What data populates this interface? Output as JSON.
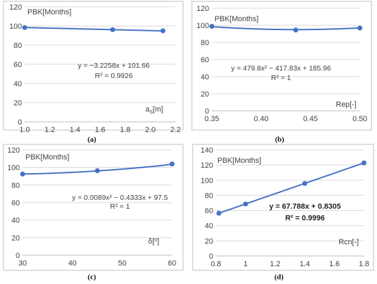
{
  "colors": {
    "series": "#4472c4",
    "grid": "#d9d9d9",
    "frame": "#bfbfbf",
    "text": "#404040"
  },
  "chart_data": [
    {
      "type": "line",
      "caption": "(a)",
      "ylabel": "PBK[Months]",
      "xlabel": "a_s[m]",
      "xlabel_main": "a",
      "xlabel_sub": "S",
      "xlabel_rest": "[m]",
      "xlim": [
        1.0,
        2.2
      ],
      "ylim": [
        0,
        120
      ],
      "xticks": [
        1.0,
        1.2,
        1.4,
        1.6,
        1.8,
        2.0,
        2.2
      ],
      "xtick_labels": [
        "1.0",
        "1.2",
        "1.4",
        "1.6",
        "1.8",
        "2.0",
        "2.2"
      ],
      "yticks": [
        0,
        20,
        40,
        60,
        80,
        100,
        120
      ],
      "ytick_labels": [
        "0",
        "20",
        "40",
        "60",
        "80",
        "100",
        "120"
      ],
      "series": [
        {
          "x": [
            1.0,
            1.7,
            2.1
          ],
          "y": [
            98.4,
            96.2,
            95.0
          ]
        }
      ],
      "trendline": {
        "type": "linear",
        "a": -3.2258,
        "b": 101.66
      },
      "equation": "y = −3.2258x + 101.66",
      "r2": "R² = 0.9926",
      "grid": true
    },
    {
      "type": "line",
      "caption": "(b)",
      "ylabel": "PBK[Months]",
      "xlabel": "Rep[-]",
      "xlim": [
        0.35,
        0.5
      ],
      "ylim": [
        0,
        120
      ],
      "xticks": [
        0.35,
        0.4,
        0.45,
        0.5
      ],
      "xtick_labels": [
        "0.35",
        "0.40",
        "0.45",
        "0.50"
      ],
      "yticks": [
        0,
        20,
        40,
        60,
        80,
        100,
        120
      ],
      "ytick_labels": [
        "0",
        "20",
        "40",
        "60",
        "80",
        "100",
        "120"
      ],
      "series": [
        {
          "x": [
            0.35,
            0.435,
            0.5
          ],
          "y": [
            98.8,
            94.5,
            96.8
          ]
        }
      ],
      "trendline": {
        "type": "poly2",
        "a": 479.8,
        "b": -417.83,
        "c": 185.96
      },
      "equation": "y = 479.8x² − 417.83x + 185.96",
      "r2": "R² = 1",
      "grid": true
    },
    {
      "type": "line",
      "caption": "(c)",
      "ylabel": "PBK[Months]",
      "xlabel": "δ[º]",
      "xlim": [
        30,
        60
      ],
      "ylim": [
        0,
        120
      ],
      "xticks": [
        30,
        40,
        50,
        60
      ],
      "xtick_labels": [
        "30",
        "40",
        "50",
        "60"
      ],
      "yticks": [
        0,
        20,
        40,
        60,
        80,
        100,
        120
      ],
      "ytick_labels": [
        "0",
        "20",
        "40",
        "60",
        "80",
        "100",
        "120"
      ],
      "series": [
        {
          "x": [
            30,
            45,
            60
          ],
          "y": [
            92.5,
            96.3,
            103.9
          ]
        }
      ],
      "trendline": {
        "type": "poly2",
        "a": 0.0089,
        "b": -0.4333,
        "c": 97.5
      },
      "equation": "y = 0.0089x² − 0.4333x + 97.5",
      "r2": "R² = 1",
      "grid": true
    },
    {
      "type": "line",
      "caption": "(d)",
      "ylabel": "PBK[Months]",
      "xlabel": "Rcn[-]",
      "xlim": [
        0.8,
        1.8
      ],
      "ylim": [
        0,
        140
      ],
      "xticks": [
        0.8,
        1.0,
        1.2,
        1.4,
        1.6,
        1.8
      ],
      "xtick_labels": [
        "0.8",
        "1",
        "1.2",
        "1.4",
        "1.6",
        "1.8"
      ],
      "yticks": [
        0,
        20,
        40,
        60,
        80,
        100,
        120,
        140
      ],
      "ytick_labels": [
        "0",
        "20",
        "40",
        "60",
        "80",
        "100",
        "120",
        "140"
      ],
      "series": [
        {
          "x": [
            0.82,
            1.0,
            1.4,
            1.8
          ],
          "y": [
            56.4,
            68.6,
            95.7,
            122.8
          ]
        }
      ],
      "trendline": {
        "type": "linear",
        "a": 67.788,
        "b": 0.8305
      },
      "equation": "y = 67.788x + 0.8305",
      "r2": "R² = 0.9996",
      "equation_bold": true,
      "grid": true
    }
  ]
}
